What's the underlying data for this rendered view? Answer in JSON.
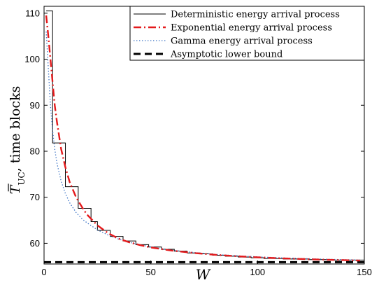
{
  "chart_data": {
    "type": "line",
    "xlabel": "W",
    "ylabel_main": "T",
    "ylabel_sub": "UC",
    "ylabel_rest": ", time blocks",
    "xlim": [
      0,
      150
    ],
    "ylim": [
      55.5,
      111.5
    ],
    "x_ticks": [
      0,
      50,
      100,
      150
    ],
    "y_ticks": [
      60,
      70,
      80,
      90,
      100,
      110
    ],
    "grid": false,
    "legend_position": "top-right",
    "series": [
      {
        "name": "Deterministic energy arrival process",
        "color": "#000000",
        "style": "solid",
        "step_points": [
          [
            1,
            110.5
          ],
          [
            4,
            110.5
          ],
          [
            4,
            81.8
          ],
          [
            7,
            81.8
          ],
          [
            7,
            81.8
          ],
          [
            10,
            81.8
          ],
          [
            10,
            72.3
          ],
          [
            13,
            72.3
          ],
          [
            13,
            72.3
          ],
          [
            16,
            72.3
          ],
          [
            16,
            67.6
          ],
          [
            19,
            67.6
          ],
          [
            19,
            67.6
          ],
          [
            22,
            67.6
          ],
          [
            22,
            64.7
          ],
          [
            25,
            64.7
          ],
          [
            25,
            62.8
          ],
          [
            28,
            62.8
          ],
          [
            28,
            62.8
          ],
          [
            31,
            62.8
          ],
          [
            31,
            61.5
          ],
          [
            34,
            61.5
          ],
          [
            34,
            61.5
          ],
          [
            37,
            61.5
          ],
          [
            37,
            60.5
          ],
          [
            40,
            60.5
          ],
          [
            40,
            60.5
          ],
          [
            43,
            60.5
          ],
          [
            43,
            59.7
          ],
          [
            46,
            59.7
          ],
          [
            46,
            59.7
          ],
          [
            49,
            59.7
          ],
          [
            49,
            59.2
          ],
          [
            52,
            59.2
          ],
          [
            52,
            59.2
          ],
          [
            55,
            59.2
          ],
          [
            55,
            58.7
          ],
          [
            58,
            58.7
          ],
          [
            58,
            58.7
          ],
          [
            61,
            58.7
          ],
          [
            61,
            58.3
          ],
          [
            64,
            58.3
          ],
          [
            64,
            58.3
          ],
          [
            67,
            58.3
          ],
          [
            67,
            57.9
          ],
          [
            70,
            57.9
          ],
          [
            70,
            57.9
          ],
          [
            73,
            57.9
          ],
          [
            73,
            57.7
          ],
          [
            76,
            57.7
          ],
          [
            76,
            57.7
          ],
          [
            79,
            57.7
          ],
          [
            79,
            57.4
          ],
          [
            85,
            57.4
          ],
          [
            85,
            57.2
          ],
          [
            91,
            57.2
          ],
          [
            91,
            57.0
          ],
          [
            97,
            57.0
          ],
          [
            97,
            56.85
          ],
          [
            103,
            56.85
          ],
          [
            103,
            56.7
          ],
          [
            112,
            56.7
          ],
          [
            112,
            56.58
          ],
          [
            124,
            56.58
          ],
          [
            124,
            56.45
          ],
          [
            136,
            56.45
          ],
          [
            136,
            56.35
          ],
          [
            150,
            56.35
          ]
        ]
      },
      {
        "name": "Exponential energy arrival process",
        "color": "#e41a1c",
        "style": "dashdot",
        "points": [
          [
            1,
            109.5
          ],
          [
            2,
            105
          ],
          [
            3,
            100
          ],
          [
            4,
            95
          ],
          [
            5,
            90
          ],
          [
            6,
            86.5
          ],
          [
            7,
            83.5
          ],
          [
            8,
            80.5
          ],
          [
            10,
            76.5
          ],
          [
            12,
            73.3
          ],
          [
            15,
            70.0
          ],
          [
            18,
            67.7
          ],
          [
            20,
            66.3
          ],
          [
            25,
            63.9
          ],
          [
            30,
            62.2
          ],
          [
            35,
            61.0
          ],
          [
            40,
            60.2
          ],
          [
            45,
            59.6
          ],
          [
            50,
            59.1
          ],
          [
            60,
            58.4
          ],
          [
            70,
            57.9
          ],
          [
            80,
            57.5
          ],
          [
            90,
            57.2
          ],
          [
            100,
            56.95
          ],
          [
            110,
            56.75
          ],
          [
            120,
            56.6
          ],
          [
            130,
            56.45
          ],
          [
            140,
            56.35
          ],
          [
            148,
            56.25
          ]
        ]
      },
      {
        "name": "Gamma energy arrival process",
        "color": "#3a72c4",
        "style": "dotted",
        "points": [
          [
            1,
            106
          ],
          [
            2,
            98
          ],
          [
            3,
            90
          ],
          [
            4,
            84.5
          ],
          [
            5,
            80.5
          ],
          [
            6,
            77.5
          ],
          [
            8,
            73.5
          ],
          [
            10,
            70.8
          ],
          [
            12,
            68.8
          ],
          [
            15,
            66.7
          ],
          [
            18,
            65.2
          ],
          [
            20,
            64.5
          ],
          [
            25,
            62.9
          ],
          [
            30,
            61.8
          ],
          [
            35,
            60.9
          ],
          [
            40,
            60.2
          ],
          [
            50,
            59.2
          ],
          [
            60,
            58.5
          ],
          [
            70,
            58.0
          ],
          [
            80,
            57.6
          ],
          [
            90,
            57.3
          ],
          [
            100,
            57.05
          ],
          [
            110,
            56.85
          ],
          [
            120,
            56.7
          ],
          [
            130,
            56.55
          ],
          [
            140,
            56.45
          ],
          [
            148,
            56.35
          ]
        ]
      },
      {
        "name": "Asymptotic lower bound",
        "color": "#000000",
        "style": "dashed",
        "points": [
          [
            0,
            55.9
          ],
          [
            150,
            55.9
          ]
        ]
      }
    ]
  }
}
